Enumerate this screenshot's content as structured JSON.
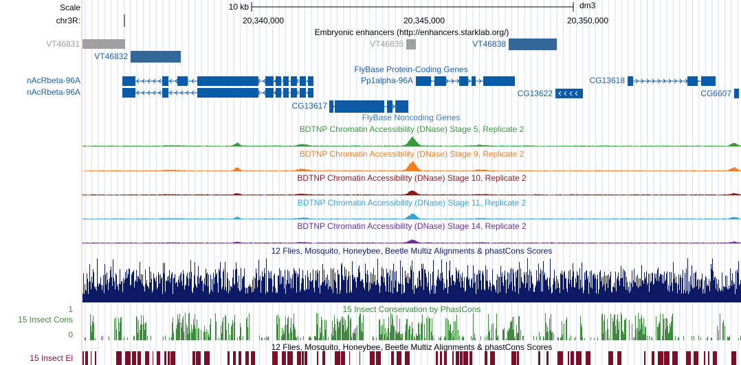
{
  "scale": {
    "label": "Scale",
    "size": "10 kb",
    "assembly": "dm3"
  },
  "position": {
    "label": "chr3R:",
    "ticks": [
      "20,340,000",
      "20,345,000",
      "20,350,000"
    ]
  },
  "tracks": {
    "enhancers": {
      "title": "Embryonic enhancers (http://enhancers.starklab.org/)",
      "items": [
        "VT46831",
        "VT46832",
        "VT46835",
        "VT46838"
      ]
    },
    "coding": {
      "title": "FlyBase Protein-Coding Genes",
      "genes": [
        "nAcRbeta-96A",
        "nAcRbeta-96A",
        "Pp1alpha-96A",
        "CG13622",
        "CG13618",
        "CG6607",
        "CG13617"
      ]
    },
    "noncoding": {
      "title": "FlyBase Noncoding Genes"
    },
    "dnase": [
      {
        "title": "BDTNP Chromatin Accessibility (DNase) Stage 5, Replicate 2"
      },
      {
        "title": "BDTNP Chromatin Accessibility (DNase) Stage 9, Replicate 2"
      },
      {
        "title": "BDTNP Chromatin Accessibility (DNase) Stage 10, Replicate 2"
      },
      {
        "title": "BDTNP Chromatin Accessibility (DNase) Stage 11, Replicate 2"
      },
      {
        "title": "BDTNP Chromatin Accessibility (DNase) Stage 14, Replicate 2"
      }
    ],
    "multiz": {
      "title": "12 Flies, Mosquito, Honeybee, Beetle Multiz Alignments & phastCons Scores"
    },
    "phastcons": {
      "title": "15 Insect Conservation by PhastCons",
      "label": "15 Insect Cons",
      "ymax": 1,
      "ymin": 0
    },
    "elements": {
      "title": "12 Flies, Mosquito, Honeybee, Beetle Multiz Alignments & phastCons Scores",
      "label": "15 Insect El"
    }
  }
}
